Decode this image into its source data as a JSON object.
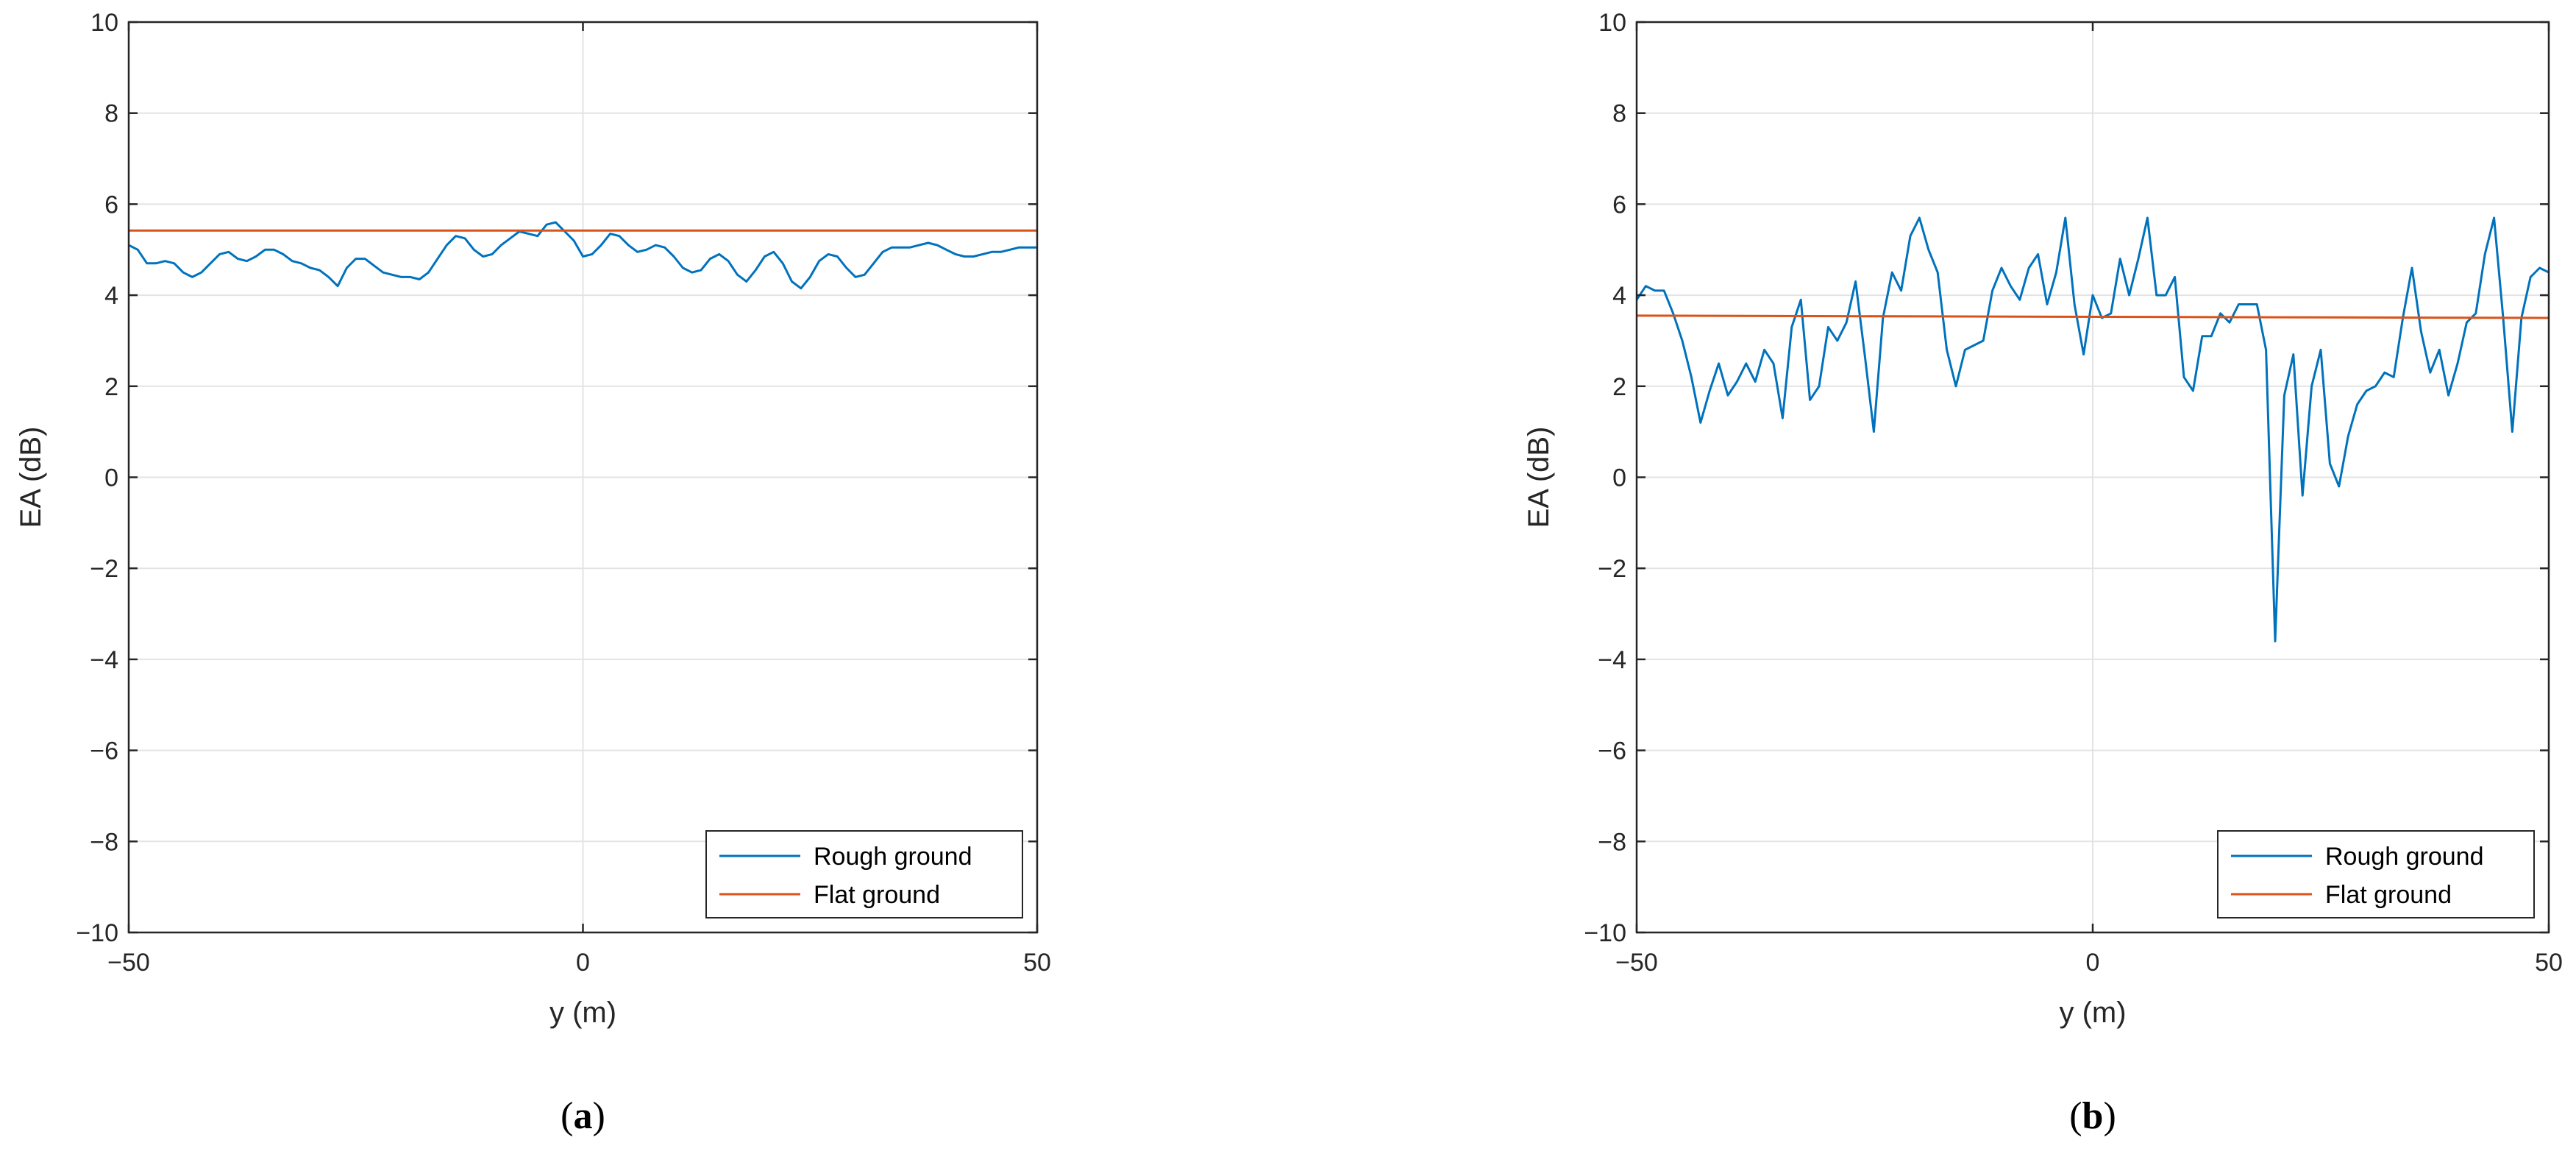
{
  "chart_data": [
    {
      "type": "line",
      "panel_label": "a",
      "xlabel": "y (m)",
      "ylabel": "EA (dB)",
      "xlim": [
        -50,
        50
      ],
      "ylim": [
        -10,
        10
      ],
      "x_ticks": [
        "−50",
        "0",
        "50"
      ],
      "y_ticks": [
        "−10",
        "−8",
        "−6",
        "−4",
        "−2",
        "0",
        "2",
        "4",
        "6",
        "8",
        "10"
      ],
      "grid": true,
      "legend_position": "bottom-right",
      "series": [
        {
          "name": "Rough ground",
          "color": "#0072BD",
          "x": [
            -50,
            -49,
            -48,
            -47,
            -46,
            -45,
            -44,
            -43,
            -42,
            -41,
            -40,
            -39,
            -38,
            -37,
            -36,
            -35,
            -34,
            -33,
            -32,
            -31,
            -30,
            -29,
            -28,
            -27,
            -26,
            -25,
            -24,
            -23,
            -22,
            -21,
            -20,
            -19,
            -18,
            -17,
            -16,
            -15,
            -14,
            -13,
            -12,
            -11,
            -10,
            -9,
            -8,
            -7,
            -6,
            -5,
            -4,
            -3,
            -2,
            -1,
            0,
            1,
            2,
            3,
            4,
            5,
            6,
            7,
            8,
            9,
            10,
            11,
            12,
            13,
            14,
            15,
            16,
            17,
            18,
            19,
            20,
            21,
            22,
            23,
            24,
            25,
            26,
            27,
            28,
            29,
            30,
            31,
            32,
            33,
            34,
            35,
            36,
            37,
            38,
            39,
            40,
            41,
            42,
            43,
            44,
            45,
            46,
            47,
            48,
            49,
            50
          ],
          "y": [
            5.1,
            5.0,
            4.7,
            4.7,
            4.75,
            4.7,
            4.5,
            4.4,
            4.5,
            4.7,
            4.9,
            4.95,
            4.8,
            4.75,
            4.85,
            5.0,
            5.0,
            4.9,
            4.75,
            4.7,
            4.6,
            4.55,
            4.4,
            4.2,
            4.6,
            4.8,
            4.8,
            4.65,
            4.5,
            4.45,
            4.4,
            4.4,
            4.35,
            4.5,
            4.8,
            5.1,
            5.3,
            5.25,
            5.0,
            4.85,
            4.9,
            5.1,
            5.25,
            5.4,
            5.35,
            5.3,
            5.55,
            5.6,
            5.4,
            5.2,
            4.85,
            4.9,
            5.1,
            5.35,
            5.3,
            5.1,
            4.95,
            5.0,
            5.1,
            5.05,
            4.85,
            4.6,
            4.5,
            4.55,
            4.8,
            4.9,
            4.75,
            4.45,
            4.3,
            4.55,
            4.85,
            4.95,
            4.7,
            4.3,
            4.15,
            4.4,
            4.75,
            4.9,
            4.85,
            4.6,
            4.4,
            4.45,
            4.7,
            4.95,
            5.05,
            5.05,
            5.05,
            5.1,
            5.15,
            5.1,
            5.0,
            4.9,
            4.85,
            4.85,
            4.9,
            4.95,
            4.95,
            5.0,
            5.05,
            5.05,
            5.05
          ]
        },
        {
          "name": "Flat ground",
          "color": "#D95319",
          "x": [
            -50,
            50
          ],
          "y": [
            5.42,
            5.42
          ]
        }
      ]
    },
    {
      "type": "line",
      "panel_label": "b",
      "xlabel": "y (m)",
      "ylabel": "EA (dB)",
      "xlim": [
        -50,
        50
      ],
      "ylim": [
        -10,
        10
      ],
      "x_ticks": [
        "−50",
        "0",
        "50"
      ],
      "y_ticks": [
        "−10",
        "−8",
        "−6",
        "−4",
        "−2",
        "0",
        "2",
        "4",
        "6",
        "8",
        "10"
      ],
      "grid": true,
      "legend_position": "bottom-right",
      "series": [
        {
          "name": "Rough ground",
          "color": "#0072BD",
          "x": [
            -50,
            -49,
            -48,
            -47,
            -46,
            -45,
            -44,
            -43,
            -42,
            -41,
            -40,
            -39,
            -38,
            -37,
            -36,
            -35,
            -34,
            -33,
            -32,
            -31,
            -30,
            -29,
            -28,
            -27,
            -26,
            -25,
            -24,
            -23,
            -22,
            -21,
            -20,
            -19,
            -18,
            -17,
            -16,
            -15,
            -14,
            -13,
            -12,
            -11,
            -10,
            -9,
            -8,
            -7,
            -6,
            -5,
            -4,
            -3,
            -2,
            -1,
            0,
            1,
            2,
            3,
            4,
            5,
            6,
            7,
            8,
            9,
            10,
            11,
            12,
            13,
            14,
            15,
            16,
            17,
            18,
            19,
            20,
            21,
            22,
            23,
            24,
            25,
            26,
            27,
            28,
            29,
            30,
            31,
            32,
            33,
            34,
            35,
            36,
            37,
            38,
            39,
            40,
            41,
            42,
            43,
            44,
            45,
            46,
            47,
            48,
            49,
            50
          ],
          "y": [
            3.9,
            4.2,
            4.1,
            4.1,
            3.6,
            3.0,
            2.2,
            1.2,
            1.9,
            2.5,
            1.8,
            2.1,
            2.5,
            2.1,
            2.8,
            2.5,
            1.3,
            3.3,
            3.9,
            1.7,
            2.0,
            3.3,
            3.0,
            3.4,
            4.3,
            2.7,
            1.0,
            3.5,
            4.5,
            4.1,
            5.3,
            5.7,
            5.0,
            4.5,
            2.8,
            2.0,
            2.8,
            2.9,
            3.0,
            4.1,
            4.6,
            4.2,
            3.9,
            4.6,
            4.9,
            3.8,
            4.5,
            5.7,
            3.8,
            2.7,
            4.0,
            3.5,
            3.6,
            4.8,
            4.0,
            4.8,
            5.7,
            4.0,
            4.0,
            4.4,
            2.2,
            1.9,
            3.1,
            3.1,
            3.6,
            3.4,
            3.8,
            3.8,
            3.8,
            2.8,
            -3.6,
            1.8,
            2.7,
            -0.4,
            2.0,
            2.8,
            0.3,
            -0.2,
            0.9,
            1.6,
            1.9,
            2.0,
            2.3,
            2.2,
            3.5,
            4.6,
            3.2,
            2.3,
            2.8,
            1.8,
            2.5,
            3.4,
            3.6,
            4.9,
            5.7,
            3.5,
            1.0,
            3.5,
            4.4,
            4.6,
            4.5
          ]
        },
        {
          "name": "Flat ground",
          "color": "#D95319",
          "x": [
            -50,
            50
          ],
          "y": [
            3.55,
            3.5
          ]
        }
      ]
    }
  ]
}
